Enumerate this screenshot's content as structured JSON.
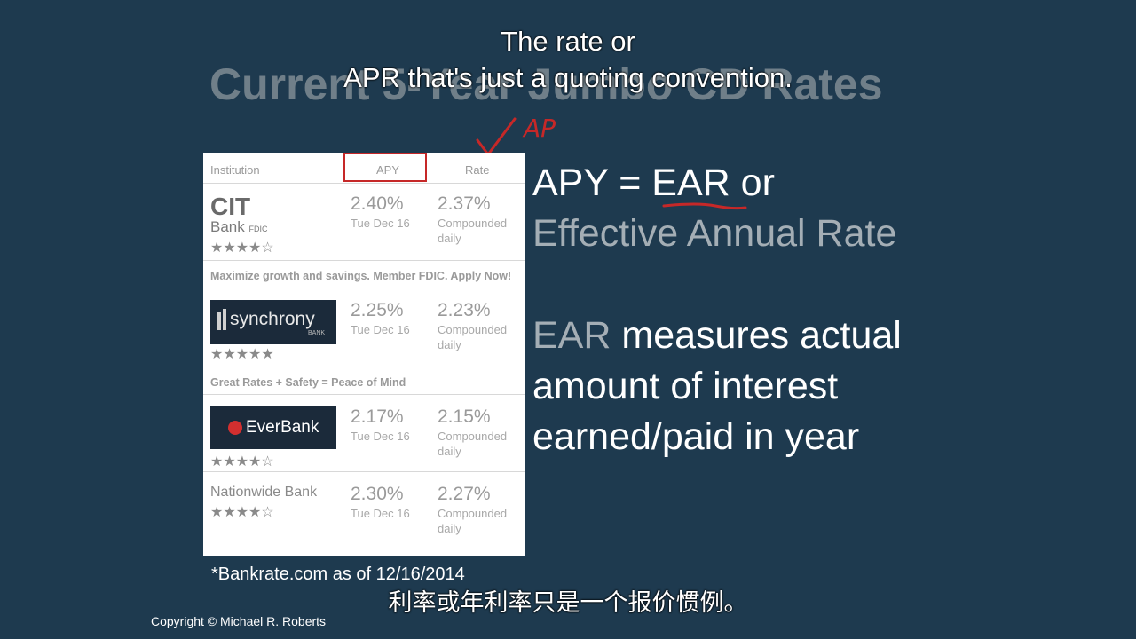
{
  "slide": {
    "title": "Current 5-Year Jumbo CD Rates",
    "footnote": "*Bankrate.com as of 12/16/2014",
    "copyright": "Copyright © Michael R. Roberts"
  },
  "subtitles": {
    "line1": "The rate or",
    "line2": "APR that's just a quoting convention.",
    "chinese": "利率或年利率只是一个报价惯例。"
  },
  "annotation": {
    "handwritten": "AP"
  },
  "table": {
    "headers": {
      "institution": "Institution",
      "apy": "APY",
      "rate": "Rate"
    },
    "rows": [
      {
        "logo": "CIT",
        "logo_sub": "Bank",
        "logo_tag": "FDIC",
        "apy": "2.40%",
        "apy_date": "Tue Dec 16",
        "rate": "2.37%",
        "rate_note1": "Compounded",
        "rate_note2": "daily",
        "stars": "★★★★☆",
        "promo": "Maximize growth and savings. Member FDIC. Apply Now!"
      },
      {
        "logo": "synchrony",
        "logo_sub": "BANK",
        "apy": "2.25%",
        "apy_date": "Tue Dec 16",
        "rate": "2.23%",
        "rate_note1": "Compounded",
        "rate_note2": "daily",
        "stars": "★★★★★",
        "promo": "Great Rates + Safety = Peace of Mind"
      },
      {
        "logo": "EverBank",
        "apy": "2.17%",
        "apy_date": "Tue Dec 16",
        "rate": "2.15%",
        "rate_note1": "Compounded",
        "rate_note2": "daily",
        "stars": "★★★★☆"
      },
      {
        "logo": "Nationwide Bank",
        "apy": "2.30%",
        "apy_date": "Tue Dec 16",
        "rate": "2.27%",
        "rate_note1": "Compounded",
        "rate_note2": "daily",
        "stars": "★★★★☆"
      }
    ]
  },
  "definitions": {
    "line1_a": "APY = ",
    "line1_b": "EAR",
    "line1_c": " or",
    "line2": "Effective Annual Rate",
    "line3_a": "EAR",
    "line3_b": " measures actual",
    "line4": "amount of interest",
    "line5": "earned/paid in year"
  }
}
